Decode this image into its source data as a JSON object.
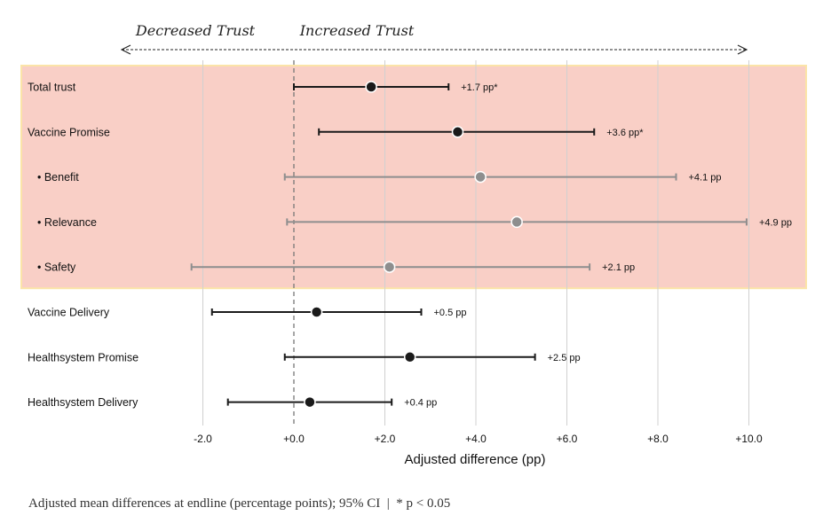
{
  "chart_data": {
    "type": "scatter",
    "subtype": "forest-plot",
    "direction_labels": {
      "left": "Decreased Trust",
      "right": "Increased Trust"
    },
    "xlabel": "Adjusted difference (pp)",
    "xlim": [
      -4.0,
      11.2
    ],
    "xticks": [
      -2.0,
      0.0,
      2.0,
      4.0,
      6.0,
      8.0,
      10.0
    ],
    "xtick_labels": [
      "-2.0",
      "+0.0",
      "+2.0",
      "+4.0",
      "+6.0",
      "+8.0",
      "+10.0"
    ],
    "reference_line": 0.0,
    "highlight_rows": [
      0,
      4
    ],
    "colors": {
      "highlight_fill": "#f9cfc6",
      "highlight_border": "#fbe4a8",
      "primary": "#1a1a1a",
      "secondary": "#8e8e8e",
      "grid": "#d0d0d0"
    },
    "rows": [
      {
        "label": "Total trust",
        "estimate": 1.7,
        "ci_low": 0.0,
        "ci_high": 3.4,
        "value_label": "+1.7 pp*",
        "style": "primary"
      },
      {
        "label": "Vaccine Promise",
        "estimate": 3.6,
        "ci_low": 0.55,
        "ci_high": 6.6,
        "value_label": "+3.6 pp*",
        "style": "primary"
      },
      {
        "label": "• Benefit",
        "estimate": 4.1,
        "ci_low": -0.2,
        "ci_high": 8.4,
        "value_label": "+4.1 pp",
        "style": "secondary"
      },
      {
        "label": "• Relevance",
        "estimate": 4.9,
        "ci_low": -0.15,
        "ci_high": 9.95,
        "value_label": "+4.9 pp",
        "style": "secondary"
      },
      {
        "label": "• Safety",
        "estimate": 2.1,
        "ci_low": -2.25,
        "ci_high": 6.5,
        "value_label": "+2.1 pp",
        "style": "secondary"
      },
      {
        "label": "Vaccine Delivery",
        "estimate": 0.5,
        "ci_low": -1.8,
        "ci_high": 2.8,
        "value_label": "+0.5 pp",
        "style": "primary"
      },
      {
        "label": "Healthsystem Promise",
        "estimate": 2.55,
        "ci_low": -0.2,
        "ci_high": 5.3,
        "value_label": "+2.5 pp",
        "style": "primary"
      },
      {
        "label": "Healthsystem Delivery",
        "estimate": 0.35,
        "ci_low": -1.45,
        "ci_high": 2.15,
        "value_label": "+0.4 pp",
        "style": "primary"
      }
    ],
    "caption": "Adjusted mean differences at endline (percentage points); 95% CI  |  * p < 0.05"
  }
}
